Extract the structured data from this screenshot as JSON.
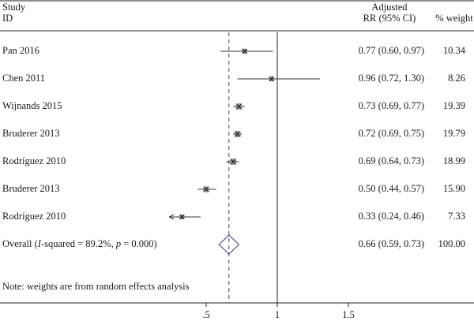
{
  "header": {
    "study_line1": "Study",
    "study_line2": "ID",
    "rr_line1": "Adjusted",
    "rr_line2": "RR (95% CI)",
    "weight": "% weight"
  },
  "overall": {
    "label_prefix": "Overall (",
    "label_i": "I",
    "label_mid": "-squared = 89.2%, ",
    "label_p": "p",
    "label_suffix": " = 0.000)",
    "rr_text": "0.66 (0.59, 0.73)",
    "weight": "100.00"
  },
  "footnote": "Note: weights are from random effects analysis",
  "chart_data": {
    "type": "forest",
    "measure": "Adjusted RR (95% CI)",
    "studies": [
      {
        "study": "Pan 2016",
        "rr": 0.77,
        "lower": 0.6,
        "upper": 0.97,
        "rr_text": "0.77 (0.60, 0.97)",
        "weight": "10.34"
      },
      {
        "study": "Chen 2011",
        "rr": 0.96,
        "lower": 0.72,
        "upper": 1.3,
        "rr_text": "0.96 (0.72, 1.30)",
        "weight": "8.26"
      },
      {
        "study": "Wijnands 2015",
        "rr": 0.73,
        "lower": 0.69,
        "upper": 0.77,
        "rr_text": "0.73 (0.69, 0.77)",
        "weight": "19.39"
      },
      {
        "study": "Bruderer 2013",
        "rr": 0.72,
        "lower": 0.69,
        "upper": 0.75,
        "rr_text": "0.72 (0.69, 0.75)",
        "weight": "19.79"
      },
      {
        "study": "Rodríguez 2010",
        "rr": 0.69,
        "lower": 0.64,
        "upper": 0.73,
        "rr_text": "0.69 (0.64, 0.73)",
        "weight": "18.99"
      },
      {
        "study": "Bruderer 2013",
        "rr": 0.5,
        "lower": 0.44,
        "upper": 0.57,
        "rr_text": "0.50 (0.44, 0.57)",
        "weight": "15.90"
      },
      {
        "study": "Rodríguez 2010",
        "rr": 0.33,
        "lower": 0.24,
        "upper": 0.46,
        "rr_text": "0.33 (0.24, 0.46)",
        "weight": "7.33",
        "lower_arrow": true
      }
    ],
    "overall": {
      "rr": 0.66,
      "lower": 0.59,
      "upper": 0.73
    },
    "null_line": 1,
    "x_ticks": [
      {
        "value": 0.5,
        "label": ".5"
      },
      {
        "value": 1,
        "label": "1"
      },
      {
        "value": 1.5,
        "label": "1.5"
      }
    ],
    "x_scale": "linear",
    "x_range": [
      0.45,
      1.75
    ]
  }
}
